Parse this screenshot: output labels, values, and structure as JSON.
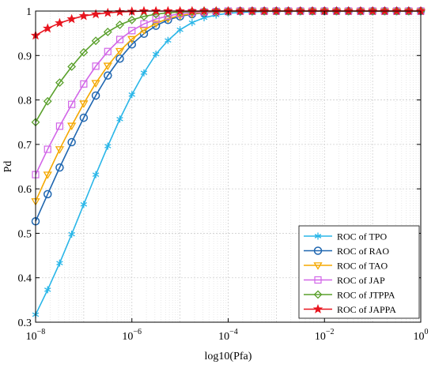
{
  "chart_data": {
    "type": "line",
    "xlabel": "log10(Pfa)",
    "ylabel": "Pd",
    "x_scale": "log",
    "xlim": [
      1e-08,
      1
    ],
    "ylim": [
      0.3,
      1.0
    ],
    "grid": true,
    "legend_placement": "bottom-right",
    "x_ticks": [
      {
        "value": 1e-08,
        "base": "10",
        "exp": "−8"
      },
      {
        "value": 1e-06,
        "base": "10",
        "exp": "−6"
      },
      {
        "value": 0.0001,
        "base": "10",
        "exp": "−4"
      },
      {
        "value": 0.01,
        "base": "10",
        "exp": "−2"
      },
      {
        "value": 1,
        "base": "10",
        "exp": "0"
      }
    ],
    "y_ticks": [
      "0.3",
      "0.4",
      "0.5",
      "0.6",
      "0.7",
      "0.8",
      "0.9",
      "1"
    ],
    "x": [
      1e-08,
      1.78e-08,
      3.16e-08,
      5.62e-08,
      1e-07,
      1.78e-07,
      3.16e-07,
      5.62e-07,
      1e-06,
      1.78e-06,
      3.16e-06,
      5.62e-06,
      1e-05,
      1.78e-05,
      3.16e-05,
      5.62e-05,
      0.0001,
      0.000178,
      0.000316,
      0.000562,
      0.001,
      0.00178,
      0.00316,
      0.00562,
      0.01,
      0.0178,
      0.0316,
      0.0562,
      0.1,
      0.178,
      0.316,
      0.562,
      1
    ],
    "series": [
      {
        "name": "ROC of TPO",
        "color": "#29b6e8",
        "marker": "asterisk",
        "values": [
          0.317,
          0.373,
          0.433,
          0.498,
          0.565,
          0.632,
          0.696,
          0.757,
          0.812,
          0.861,
          0.903,
          0.934,
          0.958,
          0.974,
          0.985,
          0.991,
          0.995,
          0.997,
          0.998,
          0.999,
          1.0,
          1.0,
          1.0,
          1.0,
          1.0,
          1.0,
          1.0,
          1.0,
          1.0,
          1.0,
          1.0,
          1.0,
          1.0
        ]
      },
      {
        "name": "ROC of RAO",
        "color": "#1f66b0",
        "marker": "circle",
        "values": [
          0.527,
          0.588,
          0.648,
          0.705,
          0.76,
          0.81,
          0.855,
          0.893,
          0.925,
          0.949,
          0.967,
          0.98,
          0.988,
          0.993,
          0.996,
          0.998,
          0.999,
          1.0,
          1.0,
          1.0,
          1.0,
          1.0,
          1.0,
          1.0,
          1.0,
          1.0,
          1.0,
          1.0,
          1.0,
          1.0,
          1.0,
          1.0,
          1.0
        ]
      },
      {
        "name": "ROC of TAO",
        "color": "#f5a800",
        "marker": "triangle-down",
        "values": [
          0.572,
          0.632,
          0.689,
          0.742,
          0.792,
          0.838,
          0.877,
          0.91,
          0.937,
          0.957,
          0.972,
          0.983,
          0.99,
          0.994,
          0.997,
          0.998,
          0.999,
          1.0,
          1.0,
          1.0,
          1.0,
          1.0,
          1.0,
          1.0,
          1.0,
          1.0,
          1.0,
          1.0,
          1.0,
          1.0,
          1.0,
          1.0,
          1.0
        ]
      },
      {
        "name": "ROC of JAP",
        "color": "#d266e8",
        "marker": "square",
        "values": [
          0.632,
          0.689,
          0.741,
          0.79,
          0.836,
          0.876,
          0.909,
          0.936,
          0.956,
          0.971,
          0.982,
          0.989,
          0.994,
          0.997,
          0.998,
          0.999,
          1.0,
          1.0,
          1.0,
          1.0,
          1.0,
          1.0,
          1.0,
          1.0,
          1.0,
          1.0,
          1.0,
          1.0,
          1.0,
          1.0,
          1.0,
          1.0,
          1.0
        ]
      },
      {
        "name": "ROC of JTPPA",
        "color": "#5aa02c",
        "marker": "diamond",
        "values": [
          0.75,
          0.797,
          0.839,
          0.875,
          0.907,
          0.933,
          0.953,
          0.969,
          0.98,
          0.988,
          0.993,
          0.996,
          0.998,
          0.999,
          1.0,
          1.0,
          1.0,
          1.0,
          1.0,
          1.0,
          1.0,
          1.0,
          1.0,
          1.0,
          1.0,
          1.0,
          1.0,
          1.0,
          1.0,
          1.0,
          1.0,
          1.0,
          1.0
        ]
      },
      {
        "name": "ROC of JAPPA",
        "color": "#e8141e",
        "marker": "star",
        "values": [
          0.945,
          0.961,
          0.973,
          0.982,
          0.989,
          0.993,
          0.996,
          0.998,
          0.999,
          1.0,
          1.0,
          1.0,
          1.0,
          1.0,
          1.0,
          1.0,
          1.0,
          1.0,
          1.0,
          1.0,
          1.0,
          1.0,
          1.0,
          1.0,
          1.0,
          1.0,
          1.0,
          1.0,
          1.0,
          1.0,
          1.0,
          1.0,
          1.0
        ]
      }
    ]
  }
}
